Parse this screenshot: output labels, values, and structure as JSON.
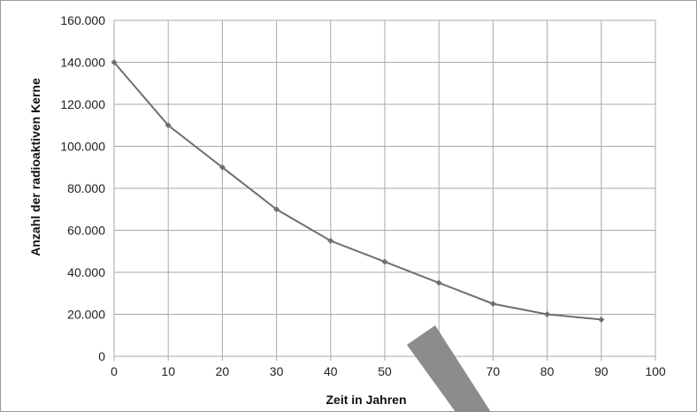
{
  "chart_data": {
    "type": "line",
    "xlabel": "Zeit in Jahren",
    "ylabel": "Anzahl der radioaktiven Kerne",
    "xlim": [
      0,
      100
    ],
    "ylim": [
      0,
      160000
    ],
    "x_ticks": [
      "0",
      "10",
      "20",
      "30",
      "40",
      "50",
      "60",
      "70",
      "80",
      "90",
      "100"
    ],
    "y_ticks": [
      "0",
      "20.000",
      "40.000",
      "60.000",
      "80.000",
      "100.000",
      "120.000",
      "140.000",
      "160.000"
    ],
    "grid": true,
    "series": [
      {
        "x": [
          0,
          10,
          20,
          30,
          40,
          50,
          60,
          70,
          80,
          90
        ],
        "y": [
          140000,
          110000,
          90000,
          70000,
          55000,
          45000,
          35000,
          25000,
          20000,
          17500
        ]
      }
    ],
    "colors": {
      "line": "#6f6f6f",
      "grid": "#a8a8a8",
      "overlay": "#8c8c8c"
    }
  }
}
